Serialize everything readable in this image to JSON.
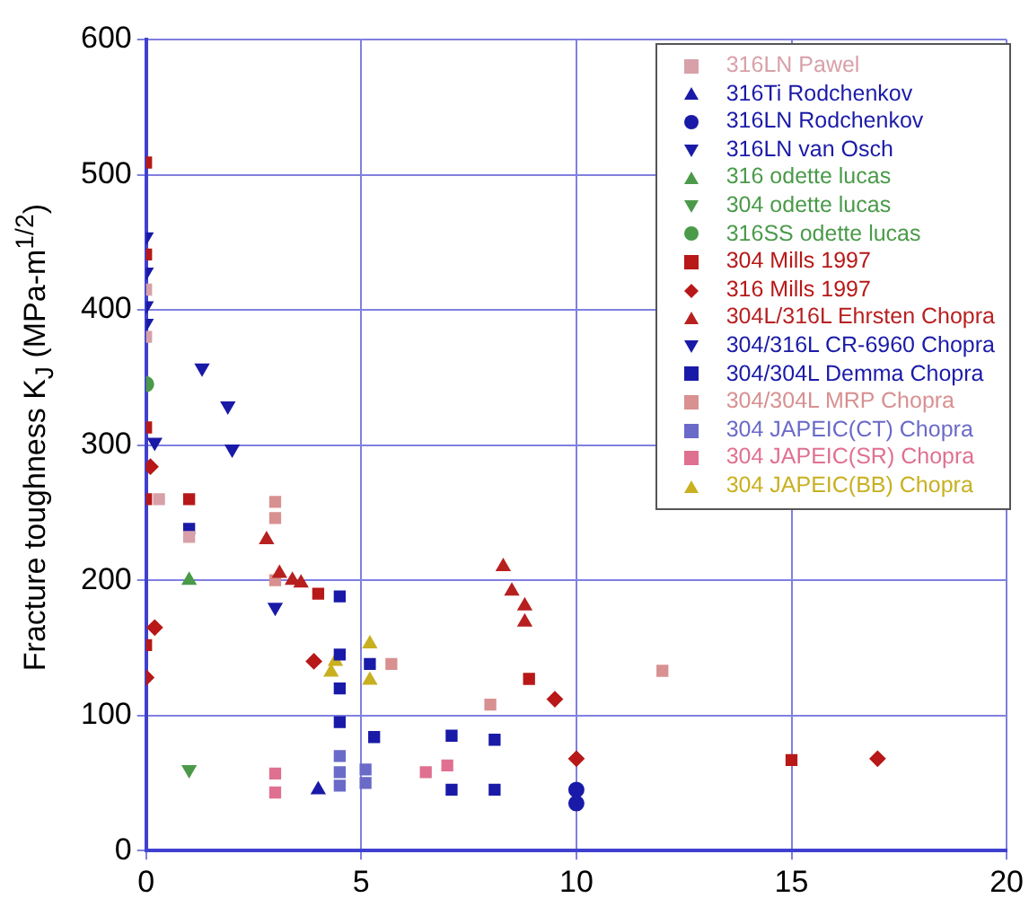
{
  "chart_data": {
    "type": "scatter",
    "ylabel": "Fracture toughness K$_{J}$ (MPa-m$^{1/2}$)",
    "xlim": [
      0,
      20
    ],
    "xticks": [
      0,
      5,
      10,
      15,
      20
    ],
    "ylim": [
      0,
      600
    ],
    "yticks": [
      0,
      100,
      200,
      300,
      400,
      500,
      600
    ],
    "grid": true,
    "legend": "top right",
    "series": [
      {
        "name": "316LN Pawel",
        "color": "#d8a0a8",
        "marker": "square",
        "x": [
          0,
          0,
          0.3,
          1
        ],
        "values": [
          415,
          380,
          260,
          232
        ]
      },
      {
        "name": "316Ti Rodchenkov",
        "color": "#1a1aa8",
        "marker": "triangle",
        "x": [
          4
        ],
        "values": [
          45
        ]
      },
      {
        "name": "316LN Rodchenkov",
        "color": "#1a1aa8",
        "marker": "circle",
        "x": [
          10,
          10
        ],
        "values": [
          45,
          35
        ]
      },
      {
        "name": "316LN van Osch",
        "color": "#1a1aa8",
        "marker": "triangle-down",
        "x": [
          0,
          0,
          0,
          0
        ],
        "values": [
          454,
          428,
          403,
          390
        ]
      },
      {
        "name": "316 odette lucas",
        "color": "#4a9a4a",
        "marker": "triangle",
        "x": [
          1
        ],
        "values": [
          200
        ]
      },
      {
        "name": "304 odette lucas",
        "color": "#4a9a4a",
        "marker": "triangle-down",
        "x": [
          1
        ],
        "values": [
          60
        ]
      },
      {
        "name": "316SS odette lucas",
        "color": "#4a9a4a",
        "marker": "circle",
        "x": [
          0
        ],
        "values": [
          345
        ]
      },
      {
        "name": "304 Mills 1997",
        "color": "#b81818",
        "marker": "square",
        "x": [
          0,
          0,
          0,
          0,
          0,
          1,
          4,
          8.9,
          15
        ],
        "values": [
          509,
          441,
          313,
          260,
          152,
          260,
          190,
          127,
          67
        ]
      },
      {
        "name": "316 Mills 1997",
        "color": "#b81818",
        "marker": "diamond",
        "x": [
          0.1,
          0.2,
          0,
          3.9,
          9.5,
          10,
          17
        ],
        "values": [
          284,
          165,
          128,
          140,
          112,
          68,
          68
        ]
      },
      {
        "name": "304L/316L Ehrsten Chopra",
        "color": "#b82020",
        "marker": "triangle",
        "x": [
          2.8,
          3.1,
          3.4,
          3.6,
          8.3,
          8.5,
          8.8,
          8.8
        ],
        "values": [
          230,
          205,
          200,
          198,
          210,
          192,
          181,
          169
        ]
      },
      {
        "name": "304/316L CR-6960 Chopra",
        "color": "#1a1aa8",
        "marker": "triangle-down",
        "x": [
          0.2,
          1.3,
          1.9,
          2,
          3
        ],
        "values": [
          302,
          357,
          329,
          297,
          180
        ]
      },
      {
        "name": "304/304L Demma Chopra",
        "color": "#1a1aa8",
        "marker": "square",
        "x": [
          1,
          4.5,
          4.5,
          4.5,
          4.5,
          5.2,
          5.3,
          7.1,
          8.1,
          7.1,
          8.1
        ],
        "values": [
          238,
          188,
          145,
          120,
          95,
          138,
          84,
          85,
          82,
          45,
          45
        ]
      },
      {
        "name": "304/304L MRP Chopra",
        "color": "#d89090",
        "marker": "square",
        "x": [
          3,
          3,
          3,
          5.7,
          8,
          12
        ],
        "values": [
          258,
          246,
          200,
          138,
          108,
          133
        ]
      },
      {
        "name": "304 JAPEIC(CT) Chopra",
        "color": "#6a6ac8",
        "marker": "square",
        "x": [
          4.5,
          4.5,
          4.5,
          5.1,
          5.1
        ],
        "values": [
          70,
          58,
          48,
          60,
          50
        ]
      },
      {
        "name": "304 JAPEIC(SR) Chopra",
        "color": "#e07090",
        "marker": "square",
        "x": [
          3,
          3,
          6.5,
          7
        ],
        "values": [
          57,
          43,
          58,
          63
        ]
      },
      {
        "name": "304 JAPEIC(BB) Chopra",
        "color": "#c8b020",
        "marker": "triangle",
        "x": [
          4.4,
          4.3,
          5.2,
          5.2
        ],
        "values": [
          140,
          132,
          153,
          126
        ]
      }
    ]
  }
}
